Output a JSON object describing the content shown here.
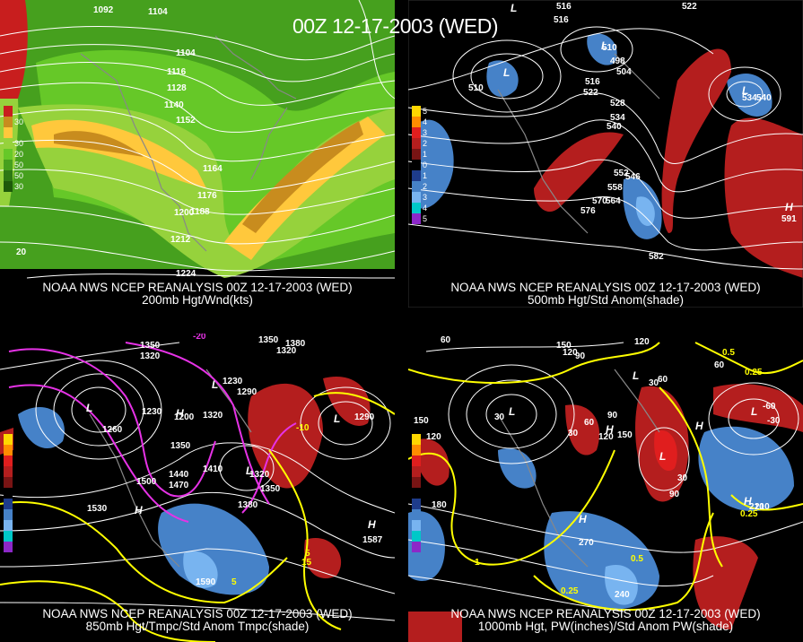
{
  "title": "00Z 12-17-2003 (WED)",
  "panels": [
    {
      "id": "p200",
      "line1": "NOAA NWS NCEP REANALYSIS 00Z 12-17-2003 (WED)",
      "line2": "200mb Hgt/Wnd(kts)",
      "contours": [
        "1092",
        "1104",
        "1104",
        "1116",
        "1128",
        "1140",
        "1152",
        "1164",
        "1176",
        "1188",
        "1200",
        "1212",
        "1224"
      ],
      "scale_ticks": [
        "30",
        "30",
        "20",
        "50",
        "50",
        "30"
      ],
      "lat_labels": [
        "20"
      ]
    },
    {
      "id": "p500",
      "line1": "NOAA NWS NCEP REANALYSIS 00Z 12-17-2003 (WED)",
      "line2": "500mb Hgt/Std Anom(shade)",
      "contours": [
        "516",
        "516",
        "522",
        "510",
        "498",
        "504",
        "516",
        "522",
        "528",
        "534",
        "540",
        "546",
        "552",
        "558",
        "564",
        "570",
        "576",
        "582",
        "510",
        "534",
        "540",
        "591"
      ],
      "scale_ticks": [
        "5",
        "4",
        "3",
        "2",
        "1",
        "0",
        "1",
        "2",
        "3",
        "4",
        "5"
      ],
      "symbols": [
        "L",
        "L",
        "L",
        "L",
        "H"
      ]
    },
    {
      "id": "p850",
      "line1": "NOAA NWS NCEP REANALYSIS 00Z 12-17-2003 (WED)",
      "line2": "850mb Hgt/Tmpc/Std Anom Tmpc(shade)",
      "contours": [
        "1350",
        "1320",
        "1350",
        "1320",
        "1290",
        "1230",
        "1200",
        "1260",
        "1230",
        "1320",
        "1350",
        "1410",
        "1440",
        "1470",
        "1500",
        "1530",
        "1380",
        "1320",
        "1350",
        "1590",
        "1587",
        "1290",
        "1380"
      ],
      "temp_labels": [
        "-20",
        "-10",
        "5",
        "15",
        "5"
      ],
      "symbols": [
        "L",
        "L",
        "H",
        "H",
        "L",
        "L",
        "H"
      ]
    },
    {
      "id": "p1000",
      "line1": "NOAA NWS NCEP REANALYSIS 00Z 12-17-2003 (WED)",
      "line2": "1000mb Hgt, PW(inches)/Std Anom PW(shade)",
      "contours": [
        "60",
        "150",
        "120",
        "90",
        "120",
        "60",
        "30",
        "60",
        "30",
        "90",
        "120",
        "150",
        "180",
        "210",
        "240",
        "270",
        "150",
        "120",
        "60",
        "30",
        "-60",
        "-30",
        "90",
        "210",
        "30"
      ],
      "pw_labels": [
        "0.5",
        "0.25",
        "1",
        "0.5",
        "0.25",
        "0.25"
      ],
      "symbols": [
        "L",
        "L",
        "L",
        "H",
        "L",
        "H",
        "H",
        "H"
      ]
    }
  ]
}
